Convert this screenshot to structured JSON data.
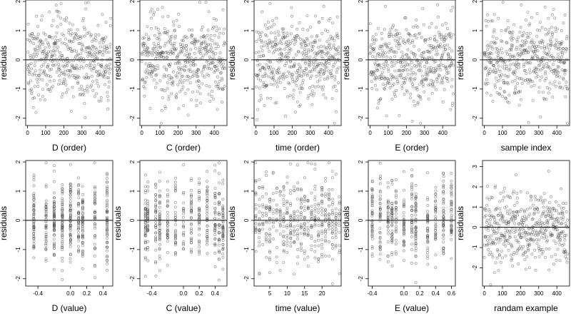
{
  "chart_data": [
    {
      "type": "scatter",
      "xlabel": "D (order)",
      "ylabel": "residuals",
      "xlim": [
        -10,
        470
      ],
      "ylim": [
        -2.25,
        2.05
      ],
      "xticks": [
        "0",
        "100",
        "200",
        "300",
        "400"
      ],
      "yticks": [
        "-2",
        "-1",
        "0",
        "1",
        "2"
      ],
      "reference_line_y": 0,
      "n_points": 460,
      "point_style": "open-circle",
      "x_kind": "order"
    },
    {
      "type": "scatter",
      "xlabel": "C (order)",
      "ylabel": "residuals",
      "xlim": [
        -10,
        470
      ],
      "ylim": [
        -2.25,
        2.05
      ],
      "xticks": [
        "0",
        "100",
        "200",
        "300",
        "400"
      ],
      "yticks": [
        "-2",
        "-1",
        "0",
        "1",
        "2"
      ],
      "reference_line_y": 0,
      "n_points": 460,
      "point_style": "open-circle",
      "x_kind": "order"
    },
    {
      "type": "scatter",
      "xlabel": "time (order)",
      "ylabel": "residuals",
      "xlim": [
        -10,
        470
      ],
      "ylim": [
        -2.25,
        2.05
      ],
      "xticks": [
        "0",
        "100",
        "200",
        "300",
        "400"
      ],
      "yticks": [
        "-2",
        "-1",
        "0",
        "1",
        "2"
      ],
      "reference_line_y": 0,
      "n_points": 460,
      "point_style": "open-circle",
      "x_kind": "order"
    },
    {
      "type": "scatter",
      "xlabel": "E (order)",
      "ylabel": "residuals",
      "xlim": [
        -10,
        470
      ],
      "ylim": [
        -2.25,
        2.05
      ],
      "xticks": [
        "0",
        "100",
        "200",
        "300",
        "400"
      ],
      "yticks": [
        "-2",
        "-1",
        "0",
        "1",
        "2"
      ],
      "reference_line_y": 0,
      "n_points": 460,
      "point_style": "open-circle",
      "x_kind": "order"
    },
    {
      "type": "scatter",
      "xlabel": "sample index",
      "ylabel": "residuals",
      "xlim": [
        -10,
        470
      ],
      "ylim": [
        -2.25,
        2.05
      ],
      "xticks": [
        "0",
        "100",
        "200",
        "300",
        "400"
      ],
      "yticks": [
        "-2",
        "-1",
        "0",
        "1",
        "2"
      ],
      "reference_line_y": 0,
      "n_points": 460,
      "point_style": "open-circle",
      "x_kind": "order"
    },
    {
      "type": "scatter",
      "xlabel": "D (value)",
      "ylabel": "residuals",
      "xlim": [
        -0.55,
        0.52
      ],
      "ylim": [
        -2.25,
        2.05
      ],
      "xticks": [
        "-0.4",
        "0.0",
        "0.2",
        "0.4"
      ],
      "yticks": [
        "-2",
        "-1",
        "0",
        "1",
        "2"
      ],
      "reference_line_y": 0,
      "n_points": 460,
      "point_style": "open-circle",
      "x_kind": "discrete",
      "x_levels": [
        -0.45,
        -0.3,
        -0.2,
        -0.1,
        0.0,
        0.1,
        0.15,
        0.3,
        0.45
      ]
    },
    {
      "type": "scatter",
      "xlabel": "C (value)",
      "ylabel": "residuals",
      "xlim": [
        -0.55,
        0.55
      ],
      "ylim": [
        -2.25,
        2.05
      ],
      "xticks": [
        "-0.4",
        "0.0",
        "0.2",
        "0.4"
      ],
      "yticks": [
        "-2",
        "-1",
        "0",
        "1",
        "2"
      ],
      "reference_line_y": 0,
      "n_points": 460,
      "point_style": "open-circle",
      "x_kind": "discrete",
      "x_levels": [
        -0.48,
        -0.45,
        -0.35,
        -0.3,
        -0.2,
        -0.1,
        0.0,
        0.1,
        0.2,
        0.3,
        0.4,
        0.45,
        0.5
      ]
    },
    {
      "type": "scatter",
      "xlabel": "time (value)",
      "ylabel": "residuals",
      "xlim": [
        0.5,
        25.5
      ],
      "ylim": [
        -2.25,
        2.05
      ],
      "xticks": [
        "5",
        "10",
        "15",
        "20"
      ],
      "yticks": [
        "-2",
        "-1",
        "0",
        "1",
        "2"
      ],
      "reference_line_y": 0,
      "n_points": 460,
      "point_style": "open-circle",
      "x_kind": "discrete",
      "x_levels": [
        1,
        2,
        3,
        4,
        5,
        6,
        7,
        8,
        9,
        10,
        11,
        12,
        13,
        14,
        15,
        16,
        17,
        18,
        19,
        20,
        21,
        22,
        23,
        24,
        25
      ]
    },
    {
      "type": "scatter",
      "xlabel": "E (value)",
      "ylabel": "residuals",
      "xlim": [
        -0.45,
        0.65
      ],
      "ylim": [
        -2.25,
        2.05
      ],
      "xticks": [
        "-0.4",
        "0.0",
        "0.2",
        "0.4",
        "0.6"
      ],
      "yticks": [
        "-2",
        "-1",
        "0",
        "1",
        "2"
      ],
      "reference_line_y": 0,
      "n_points": 460,
      "point_style": "open-circle",
      "x_kind": "discrete",
      "x_levels": [
        -0.4,
        -0.3,
        -0.2,
        -0.15,
        -0.1,
        0.0,
        0.1,
        0.15,
        0.3,
        0.4,
        0.5,
        0.6
      ]
    },
    {
      "type": "scatter",
      "xlabel": "randam example",
      "ylabel": "residuals",
      "xlim": [
        -10,
        470
      ],
      "ylim": [
        -2.9,
        3.3
      ],
      "xticks": [
        "0",
        "100",
        "200",
        "300",
        "400"
      ],
      "yticks": [
        "-2",
        "-1",
        "0",
        "1",
        "2",
        "3"
      ],
      "reference_line_y": 0,
      "n_points": 460,
      "point_style": "open-circle",
      "x_kind": "order"
    }
  ]
}
